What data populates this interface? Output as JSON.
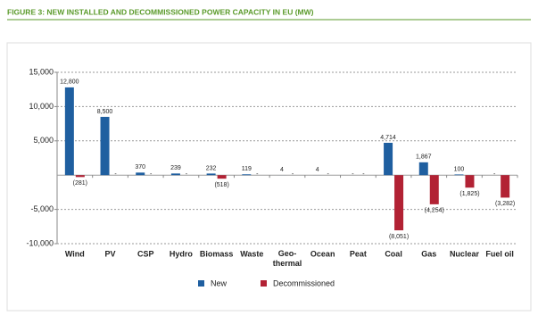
{
  "chart_data": {
    "type": "bar",
    "title": "FIGURE 3: NEW INSTALLED AND DECOMMISSIONED POWER CAPACITY IN EU (MW)",
    "categories": [
      "Wind",
      "PV",
      "CSP",
      "Hydro",
      "Biomass",
      "Waste",
      "Geo-\nthermal",
      "Ocean",
      "Peat",
      "Coal",
      "Gas",
      "Nuclear",
      "Fuel oil"
    ],
    "series": [
      {
        "name": "New",
        "color": "#1f5fa0",
        "values": [
          12800,
          8500,
          370,
          239,
          232,
          119,
          4,
          4,
          null,
          4714,
          1867,
          100,
          null
        ],
        "value_labels": [
          "12,800",
          "8,500",
          "370",
          "239",
          "232",
          "119",
          "4",
          "4",
          "-",
          "4,714",
          "1,867",
          "100",
          "-"
        ]
      },
      {
        "name": "Decommissioned",
        "color": "#b22234",
        "values": [
          -281,
          null,
          null,
          null,
          -518,
          null,
          null,
          null,
          null,
          -8051,
          -4254,
          -1825,
          -3282
        ],
        "value_labels": [
          "(281)",
          "-",
          "-",
          "-",
          "(518)",
          "-",
          "-",
          "-",
          "-",
          "(8,051)",
          "(4,254)",
          "(1,825)",
          "(3,282)"
        ]
      }
    ],
    "ylim": [
      -10000,
      15000
    ],
    "yticks": [
      {
        "value": -10000,
        "label": "-10,000"
      },
      {
        "value": -5000,
        "label": "-5,000"
      },
      {
        "value": 5000,
        "label": "5,000"
      },
      {
        "value": 10000,
        "label": "10,000"
      },
      {
        "value": 15000,
        "label": "15,000"
      }
    ],
    "grid": true
  }
}
